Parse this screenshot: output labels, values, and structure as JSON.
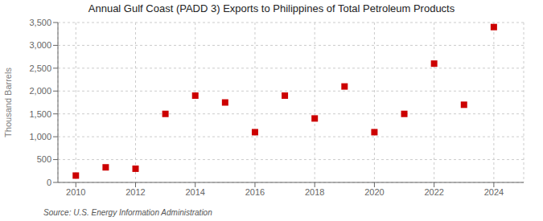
{
  "chart_data": {
    "type": "scatter",
    "title": "Annual Gulf Coast (PADD 3) Exports to Philippines of Total Petroleum Products",
    "ylabel": "Thousand Barrels",
    "annotations": [
      "Source: U.S. Energy Information Administration"
    ],
    "x": [
      2010,
      2011,
      2012,
      2013,
      2014,
      2015,
      2016,
      2017,
      2018,
      2019,
      2020,
      2021,
      2022,
      2023,
      2024
    ],
    "values": [
      150,
      330,
      300,
      1500,
      1900,
      1750,
      1100,
      1900,
      1400,
      2100,
      1100,
      1500,
      2600,
      1700,
      3400
    ],
    "color": "#cc0000",
    "marker": "square",
    "xlim": [
      2009.4,
      2025.0
    ],
    "ylim": [
      0,
      3500
    ],
    "xticks": [
      2010,
      2012,
      2014,
      2016,
      2018,
      2020,
      2022,
      2024
    ],
    "yticks": [
      0,
      500,
      {
        "value": 1000,
        "label": "1,000"
      },
      {
        "value": 1500,
        "label": "1,500"
      },
      {
        "value": 2000,
        "label": "2,000"
      },
      {
        "value": 2500,
        "label": "2,500"
      },
      {
        "value": 3000,
        "label": "3,000"
      },
      {
        "value": 3500,
        "label": "3,500"
      }
    ],
    "grid": true
  }
}
